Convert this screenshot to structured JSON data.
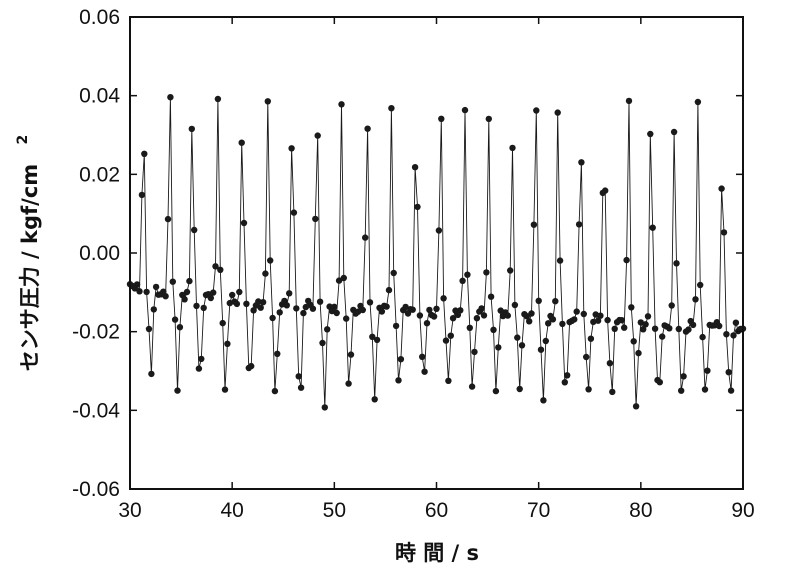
{
  "chart_data": {
    "type": "scatter",
    "title": "",
    "xlabel": "時 間 / s",
    "ylabel": "センサ圧力 / kgf/cm",
    "ylabel_superscript": "2",
    "xlim": [
      30,
      90
    ],
    "ylim": [
      -0.06,
      0.06
    ],
    "x_ticks": [
      30,
      40,
      50,
      60,
      70,
      80,
      90
    ],
    "x_tick_labels": [
      "30",
      "40",
      "50",
      "60",
      "70",
      "80",
      "90"
    ],
    "y_ticks": [
      0.06,
      0.04,
      0.02,
      0.0,
      -0.02,
      -0.04,
      -0.06
    ],
    "y_tick_labels": [
      "0.06",
      "0.04",
      "0.02",
      "0.00",
      "-0.02",
      "-0.04",
      "-0.06"
    ],
    "grid": false,
    "legend": "none",
    "marker": "filled-circle",
    "connected_line": true,
    "color": "#1a1a1a",
    "period_s": 2.36,
    "peaks": [
      {
        "t": 31.3,
        "peak": 0.038,
        "trough": -0.032
      },
      {
        "t": 33.9,
        "peak": 0.044,
        "trough": -0.034
      },
      {
        "t": 36.1,
        "peak": 0.036,
        "trough": -0.033
      },
      {
        "t": 38.6,
        "peak": 0.04,
        "trough": -0.036
      },
      {
        "t": 41.0,
        "peak": 0.037,
        "trough": -0.035
      },
      {
        "t": 43.5,
        "peak": 0.039,
        "trough": -0.036
      },
      {
        "t": 45.9,
        "peak": 0.038,
        "trough": -0.038
      },
      {
        "t": 48.3,
        "peak": 0.04,
        "trough": -0.039
      },
      {
        "t": 50.7,
        "peak": 0.037,
        "trough": -0.035
      },
      {
        "t": 53.2,
        "peak": 0.036,
        "trough": -0.036
      },
      {
        "t": 55.6,
        "peak": 0.037,
        "trough": -0.035
      },
      {
        "t": 58.0,
        "peak": 0.036,
        "trough": -0.034
      },
      {
        "t": 60.4,
        "peak": 0.041,
        "trough": -0.033
      },
      {
        "t": 62.8,
        "peak": 0.037,
        "trough": -0.034
      },
      {
        "t": 65.1,
        "peak": 0.035,
        "trough": -0.035
      },
      {
        "t": 67.4,
        "peak": 0.029,
        "trough": -0.036
      },
      {
        "t": 69.7,
        "peak": 0.045,
        "trough": -0.038
      },
      {
        "t": 71.9,
        "peak": 0.037,
        "trough": -0.036
      },
      {
        "t": 74.1,
        "peak": 0.034,
        "trough": -0.035
      },
      {
        "t": 76.4,
        "peak": 0.036,
        "trough": -0.036
      },
      {
        "t": 78.8,
        "peak": 0.042,
        "trough": -0.039
      },
      {
        "t": 81.0,
        "peak": 0.04,
        "trough": -0.038
      },
      {
        "t": 83.3,
        "peak": 0.034,
        "trough": -0.037
      },
      {
        "t": 85.6,
        "peak": 0.038,
        "trough": -0.036
      },
      {
        "t": 88.0,
        "peak": 0.029,
        "trough": -0.038
      }
    ],
    "baseline": [
      {
        "t": 30.5,
        "y": -0.009
      },
      {
        "t": 40.0,
        "y": -0.012
      },
      {
        "t": 50.0,
        "y": -0.014
      },
      {
        "t": 60.0,
        "y": -0.015
      },
      {
        "t": 70.0,
        "y": -0.016
      },
      {
        "t": 80.0,
        "y": -0.018
      },
      {
        "t": 90.0,
        "y": -0.019
      }
    ],
    "samples_per_second": 4.3
  }
}
